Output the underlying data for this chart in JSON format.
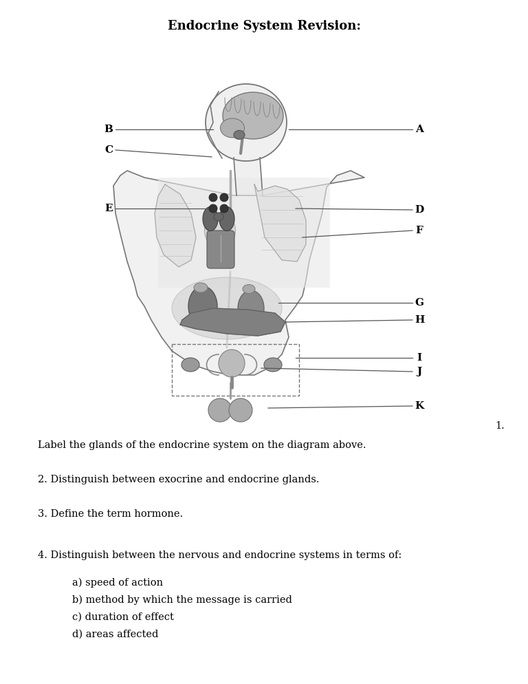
{
  "title": "Endocrine System Revision:",
  "title_fontsize": 13,
  "bg_color": "#ffffff",
  "text_color": "#000000",
  "line_color": "#555555",
  "body_outline_color": "#777777",
  "body_fill_color": "#f0f0f0",
  "organ_dark": "#555555",
  "organ_mid": "#888888",
  "organ_light": "#aaaaaa",
  "organ_very_light": "#cccccc",
  "q1_text": "Label the glands of the endocrine system on the diagram above.",
  "q2_text": "2. Distinguish between exocrine and endocrine glands.",
  "q3_text": "3. Define the term hormone.",
  "q4_text": "4. Distinguish between the nervous and endocrine systems in terms of:",
  "q4a": "a) speed of action",
  "q4b": "b) method by which the message is carried",
  "q4c": "c) duration of effect",
  "q4d": "d) areas affected"
}
